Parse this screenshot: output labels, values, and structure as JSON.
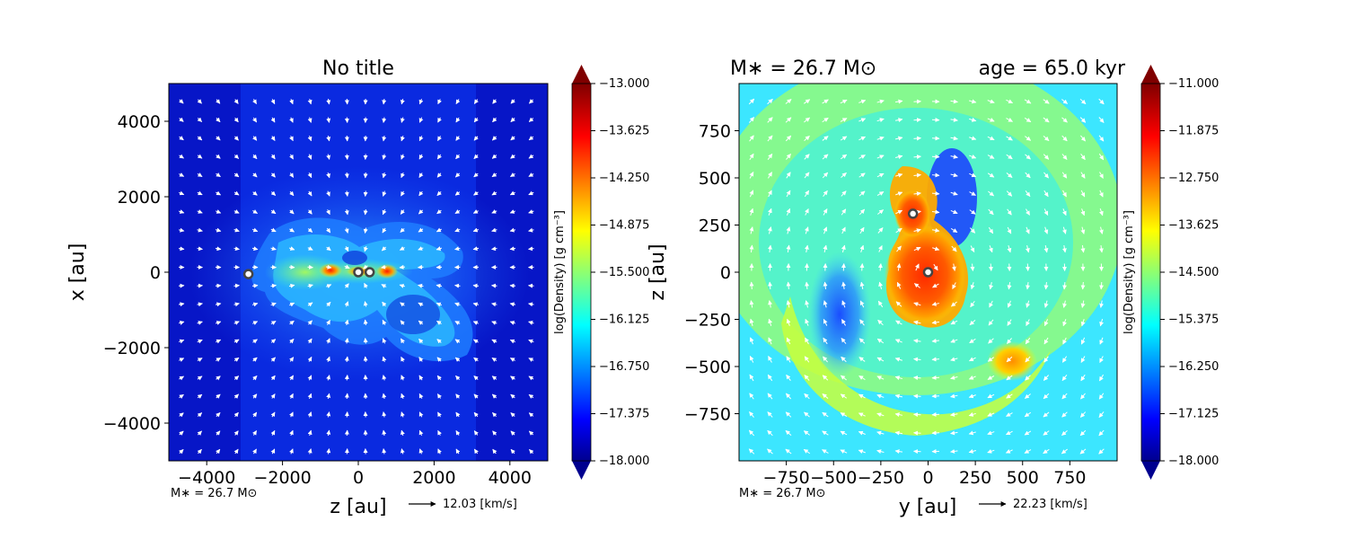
{
  "chart_data": [
    {
      "type": "heatmap",
      "title": "No title",
      "xlabel": "z [au]",
      "ylabel": "x [au]",
      "xlim": [
        -5000,
        5000
      ],
      "ylim": [
        -5000,
        5000
      ],
      "xticks": [
        -4000,
        -2000,
        0,
        2000,
        4000
      ],
      "xtick_labels": [
        "−4000",
        "−2000",
        "0",
        "2000",
        "4000"
      ],
      "yticks": [
        -4000,
        -2000,
        0,
        2000,
        4000
      ],
      "ytick_labels": [
        "−4000",
        "−2000",
        "0",
        "2000",
        "4000"
      ],
      "colorbar": {
        "label": "log(Density) [g cm⁻³]",
        "min": -18.0,
        "max": -13.0,
        "ticks": [
          "−13.000",
          "−13.625",
          "−14.250",
          "−14.875",
          "−15.500",
          "−16.125",
          "−16.750",
          "−17.375",
          "−18.000"
        ]
      },
      "stars": [
        {
          "x": -2900,
          "y": -50
        },
        {
          "x": 0,
          "y": 0
        },
        {
          "x": 300,
          "y": 0
        }
      ],
      "footer_note": "M∗ = 26.7 M⊙",
      "quiver_key": {
        "label": "12.03 [km/s]"
      },
      "grid": false
    },
    {
      "type": "heatmap",
      "title": "M∗ = 26.7 M⊙",
      "subtitle": "age = 65.0 kyr",
      "xlabel": "y [au]",
      "ylabel": "z [au]",
      "xlim": [
        -1000,
        1000
      ],
      "ylim": [
        -1000,
        1000
      ],
      "xticks": [
        -750,
        -500,
        -250,
        0,
        250,
        500,
        750
      ],
      "xtick_labels": [
        "−750",
        "−500",
        "−250",
        "0",
        "250",
        "500",
        "750"
      ],
      "yticks": [
        -750,
        -500,
        -250,
        0,
        250,
        500,
        750
      ],
      "ytick_labels": [
        "−750",
        "−500",
        "−250",
        "0",
        "250",
        "500",
        "750"
      ],
      "colorbar": {
        "label": "log(Density) [g cm⁻³]",
        "min": -18.0,
        "max": -11.0,
        "ticks": [
          "−11.000",
          "−11.875",
          "−12.750",
          "−13.625",
          "−14.500",
          "−15.375",
          "−16.250",
          "−17.125",
          "−18.000"
        ]
      },
      "stars": [
        {
          "x": -80,
          "y": 310
        },
        {
          "x": 0,
          "y": 0
        }
      ],
      "footer_note": "M∗ = 26.7 M⊙",
      "quiver_key": {
        "label": "22.23 [km/s]"
      },
      "grid": false
    }
  ]
}
